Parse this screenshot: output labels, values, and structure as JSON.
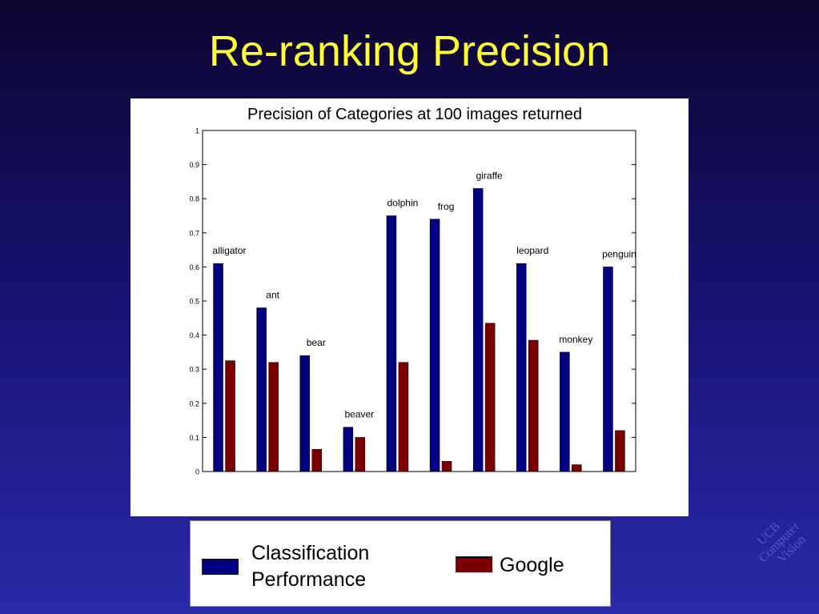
{
  "slide": {
    "title": "Re-ranking Precision"
  },
  "chart_data": {
    "type": "bar",
    "title": "Precision of Categories at 100 images returned",
    "xlabel": "",
    "ylabel": "",
    "ylim": [
      0,
      1
    ],
    "yticks": [
      "0",
      "0.1",
      "0.2",
      "0.3",
      "0.4",
      "0.5",
      "0.6",
      "0.7",
      "0.8",
      "0.9",
      "1"
    ],
    "grid": false,
    "categories": [
      "alligator",
      "ant",
      "bear",
      "beaver",
      "dolphin",
      "frog",
      "giraffe",
      "leopard",
      "monkey",
      "penguin"
    ],
    "series": [
      {
        "name": "Classification Performance",
        "color": "#000080",
        "values": [
          0.61,
          0.48,
          0.34,
          0.13,
          0.75,
          0.74,
          0.83,
          0.61,
          0.35,
          0.6
        ]
      },
      {
        "name": "Google",
        "color": "#7a0000",
        "values": [
          0.325,
          0.32,
          0.065,
          0.1,
          0.32,
          0.03,
          0.435,
          0.385,
          0.02,
          0.12
        ]
      }
    ],
    "legend_placement": "bottom"
  },
  "legend": {
    "classification_line1": "Classification",
    "classification_line2": "Performance",
    "google": "Google"
  },
  "watermark": {
    "line1": "UCB",
    "line2": "Computer",
    "line3": "Vision"
  }
}
